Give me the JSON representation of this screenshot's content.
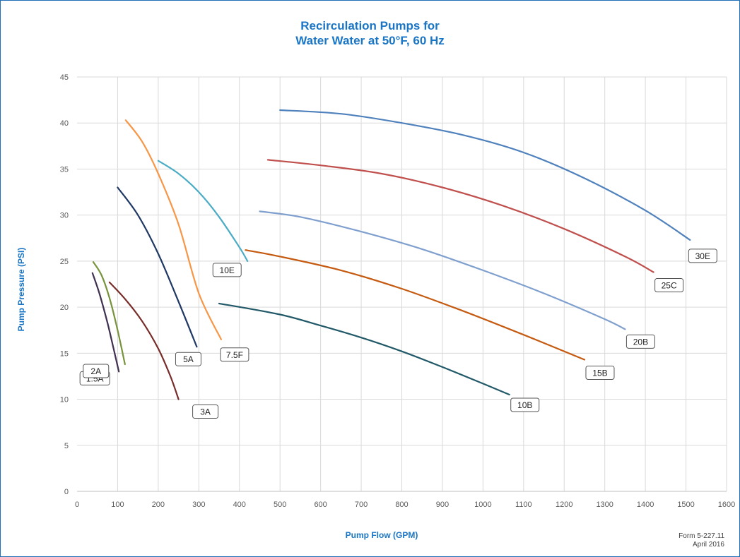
{
  "title_line1": "Recirculation Pumps for",
  "title_line2": "Water Water at 50°F, 60 Hz",
  "form_number": "Form 5-227.11",
  "form_date": "April 2016",
  "chart_data": {
    "type": "line",
    "xlabel": "Pump Flow (GPM)",
    "ylabel": "Pump Pressure (PSI)",
    "xlim": [
      0,
      1600
    ],
    "ylim": [
      0,
      45
    ],
    "xticks": [
      0,
      100,
      200,
      300,
      400,
      500,
      600,
      700,
      800,
      900,
      1000,
      1100,
      1200,
      1300,
      1400,
      1500,
      1600
    ],
    "yticks": [
      0,
      5,
      10,
      15,
      20,
      25,
      30,
      35,
      40,
      45
    ],
    "grid": true,
    "series": [
      {
        "name": "1.5A",
        "color": "#403151",
        "x": [
          38,
          55,
          75,
          90,
          103
        ],
        "y": [
          23.7,
          21.5,
          18.3,
          15.5,
          13.0
        ]
      },
      {
        "name": "2A",
        "color": "#77933c",
        "x": [
          40,
          60,
          80,
          100,
          118
        ],
        "y": [
          24.9,
          23.5,
          21.0,
          17.5,
          13.8
        ]
      },
      {
        "name": "3A",
        "color": "#772c2a",
        "x": [
          80,
          120,
          160,
          200,
          230,
          250
        ],
        "y": [
          22.7,
          20.8,
          18.5,
          15.5,
          12.5,
          10.0
        ]
      },
      {
        "name": "5A",
        "color": "#1f3864",
        "x": [
          100,
          150,
          200,
          250,
          295
        ],
        "y": [
          33.0,
          30.0,
          25.8,
          20.6,
          15.7
        ]
      },
      {
        "name": "7.5F",
        "color": "#f79646",
        "x": [
          120,
          160,
          200,
          250,
          300,
          355
        ],
        "y": [
          40.3,
          38.0,
          34.5,
          29.0,
          21.5,
          16.5
        ]
      },
      {
        "name": "10E",
        "color": "#4bacc6",
        "x": [
          200,
          250,
          300,
          350,
          400,
          420
        ],
        "y": [
          35.9,
          34.5,
          32.5,
          29.8,
          26.5,
          25.0
        ]
      },
      {
        "name": "10B",
        "color": "#215968",
        "x": [
          350,
          500,
          600,
          700,
          800,
          900,
          1000,
          1065
        ],
        "y": [
          20.4,
          19.2,
          18.0,
          16.7,
          15.2,
          13.5,
          11.7,
          10.5
        ]
      },
      {
        "name": "15B",
        "color": "#c55a11",
        "x": [
          415,
          500,
          650,
          800,
          950,
          1100,
          1250
        ],
        "y": [
          26.2,
          25.5,
          24.0,
          22.0,
          19.6,
          17.0,
          14.3
        ]
      },
      {
        "name": "20B",
        "color": "#7f9fcf",
        "x": [
          450,
          550,
          700,
          850,
          1000,
          1150,
          1300,
          1350
        ],
        "y": [
          30.4,
          29.8,
          28.2,
          26.3,
          24.0,
          21.5,
          18.7,
          17.6
        ]
      },
      {
        "name": "25C",
        "color": "#c0504d",
        "x": [
          470,
          600,
          750,
          900,
          1050,
          1200,
          1350,
          1420
        ],
        "y": [
          36.0,
          35.4,
          34.5,
          33.0,
          31.0,
          28.5,
          25.5,
          23.8
        ]
      },
      {
        "name": "30E",
        "color": "#4f81bd",
        "x": [
          500,
          650,
          800,
          950,
          1100,
          1250,
          1400,
          1510
        ],
        "y": [
          41.4,
          41.0,
          40.0,
          38.7,
          36.8,
          34.0,
          30.5,
          27.3
        ]
      }
    ],
    "annotations": [
      "1.5A",
      "2A",
      "3A",
      "5A",
      "7.5F",
      "10E",
      "10B",
      "15B",
      "20B",
      "25C",
      "30E"
    ]
  }
}
